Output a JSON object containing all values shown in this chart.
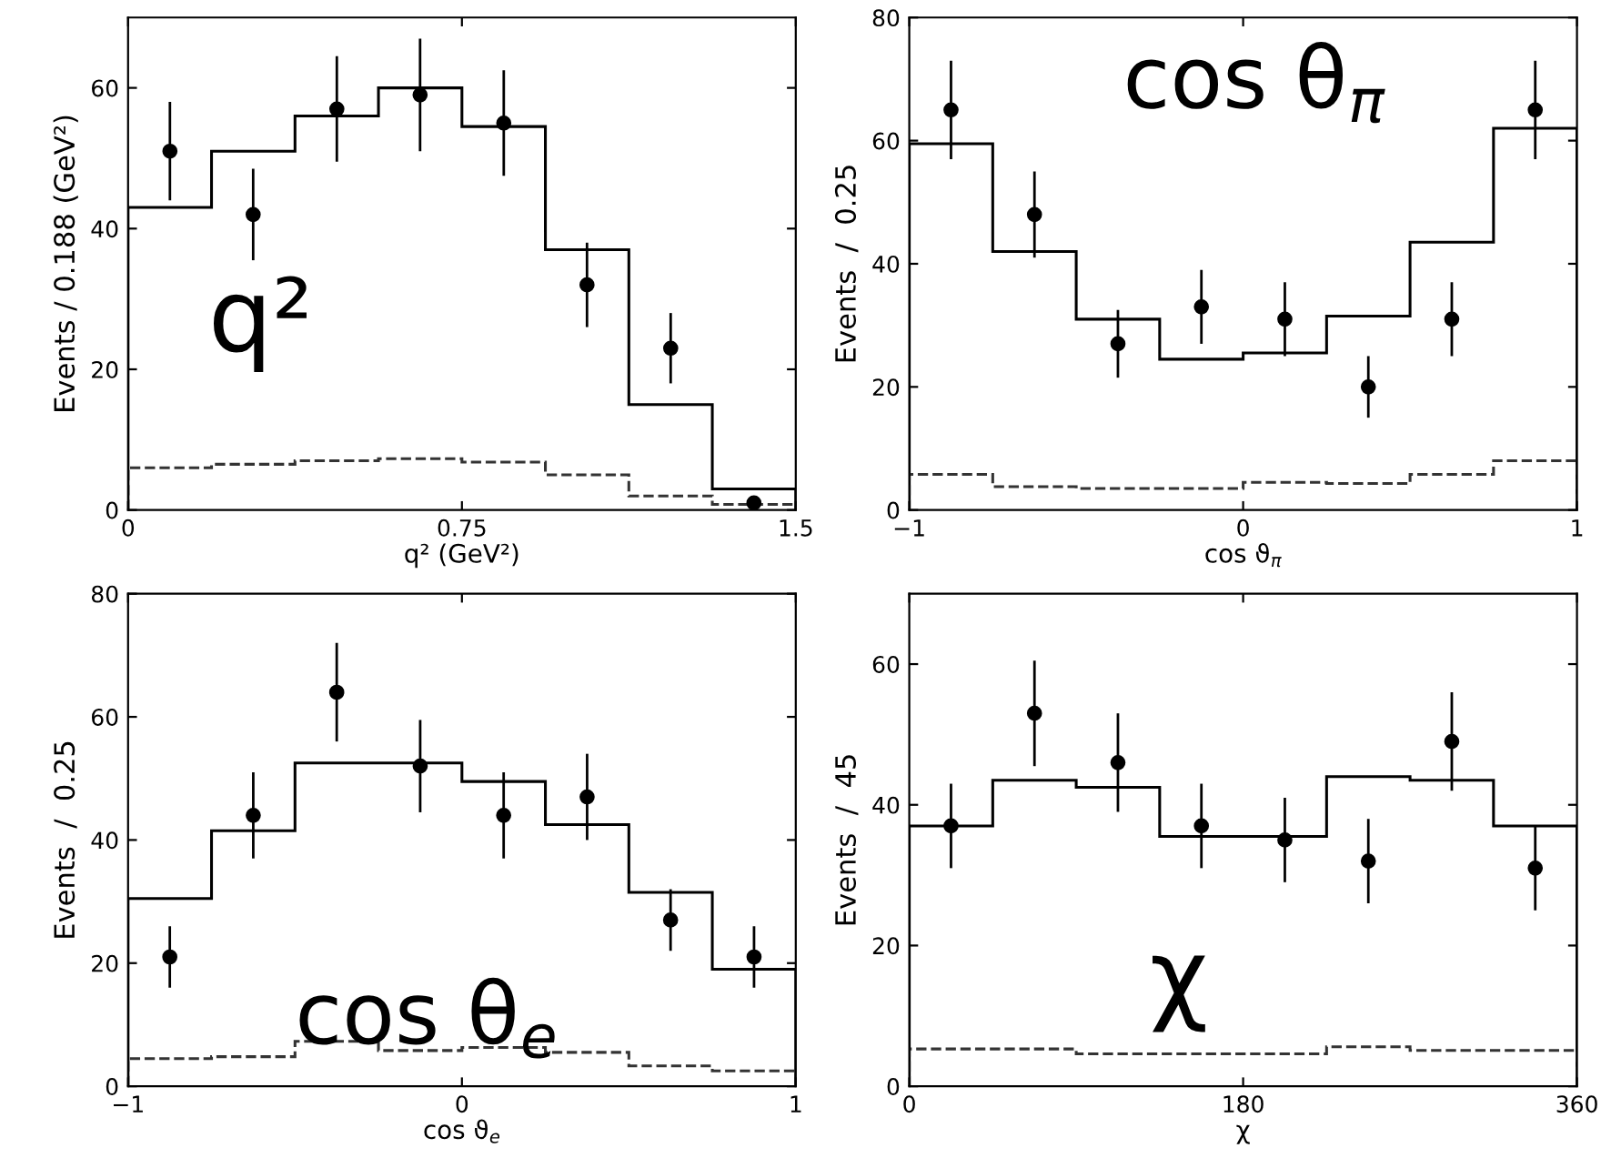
{
  "chart_data": [
    {
      "type": "histogram",
      "xlabel": "q² (GeV²)",
      "ylabel": "Events / 0.188 (GeV²)",
      "annotations": [
        "q²"
      ],
      "bins": [
        0,
        0.1875,
        0.375,
        0.5625,
        0.75,
        0.9375,
        1.125,
        1.3125,
        1.5
      ],
      "series": [
        {
          "color": "#000000",
          "line_style": "solid",
          "values": [
            43,
            51,
            56,
            60,
            54.5,
            37,
            15,
            3
          ]
        },
        {
          "color": "#333333",
          "line_style": "dashed",
          "values": [
            6,
            6.5,
            7,
            7.3,
            6.8,
            5,
            2,
            0.8
          ]
        },
        {
          "type": "scatter",
          "color": "#000000",
          "marker": "circle",
          "x": [
            0.094,
            0.281,
            0.469,
            0.656,
            0.844,
            1.031,
            1.219,
            1.406
          ],
          "values": [
            51,
            42,
            57,
            59,
            55,
            32,
            23,
            1
          ],
          "errors": [
            7,
            6.5,
            7.5,
            8,
            7.5,
            6,
            5,
            1
          ]
        }
      ],
      "xlim": [
        0,
        1.5
      ],
      "xticks": [
        0,
        0.75,
        1.5
      ],
      "ylim": [
        0,
        70
      ],
      "yticks": [
        0,
        20,
        40,
        60
      ],
      "grid": false,
      "legend": false
    },
    {
      "type": "histogram",
      "xlabel": "cos ϑ$_{π}$",
      "ylabel": "Events  /  0.25",
      "annotations": [
        "cos θ$_{π}$"
      ],
      "bins": [
        -1,
        -0.75,
        -0.5,
        -0.25,
        0,
        0.25,
        0.5,
        0.75,
        1
      ],
      "series": [
        {
          "color": "#000000",
          "line_style": "solid",
          "values": [
            59.5,
            42,
            31,
            24.5,
            25.5,
            31.5,
            43.5,
            62
          ]
        },
        {
          "color": "#333333",
          "line_style": "dashed",
          "values": [
            5.8,
            3.8,
            3.5,
            3.5,
            4.5,
            4.3,
            5.8,
            8
          ]
        },
        {
          "type": "scatter",
          "color": "#000000",
          "marker": "circle",
          "x": [
            -0.875,
            -0.625,
            -0.375,
            -0.125,
            0.125,
            0.375,
            0.625,
            0.875
          ],
          "values": [
            65,
            48,
            27,
            33,
            31,
            20,
            31,
            65
          ],
          "errors": [
            8,
            7,
            5.5,
            6,
            6,
            5,
            6,
            8
          ]
        }
      ],
      "xlim": [
        -1,
        1
      ],
      "xticks": [
        {
          "value": -1,
          "label": "−1"
        },
        0,
        1
      ],
      "ylim": [
        0,
        80
      ],
      "yticks": [
        0,
        20,
        40,
        60,
        80
      ],
      "grid": false,
      "legend": false
    },
    {
      "type": "histogram",
      "xlabel": "cos ϑ$_{e}$",
      "ylabel": "Events  /  0.25",
      "annotations": [
        "cos θ$_{e}$"
      ],
      "bins": [
        -1,
        -0.75,
        -0.5,
        -0.25,
        0,
        0.25,
        0.5,
        0.75,
        1
      ],
      "series": [
        {
          "color": "#000000",
          "line_style": "solid",
          "values": [
            30.5,
            41.5,
            52.5,
            52.5,
            49.5,
            42.5,
            31.5,
            19
          ]
        },
        {
          "color": "#333333",
          "line_style": "dashed",
          "values": [
            4.5,
            4.8,
            7.3,
            5.8,
            6.3,
            5.5,
            3.3,
            2.5
          ]
        },
        {
          "type": "scatter",
          "color": "#000000",
          "marker": "circle",
          "x": [
            -0.875,
            -0.625,
            -0.375,
            -0.125,
            0.125,
            0.375,
            0.625,
            0.875
          ],
          "values": [
            21,
            44,
            64,
            52,
            44,
            47,
            27,
            21
          ],
          "errors": [
            5,
            7,
            8,
            7.5,
            7,
            7,
            5,
            5
          ]
        }
      ],
      "xlim": [
        -1,
        1
      ],
      "xticks": [
        {
          "value": -1,
          "label": "−1"
        },
        0,
        1
      ],
      "ylim": [
        0,
        80
      ],
      "yticks": [
        0,
        20,
        40,
        60,
        80
      ],
      "grid": false,
      "legend": false
    },
    {
      "type": "histogram",
      "xlabel": "χ",
      "ylabel": "Events  /  45",
      "annotations": [
        "χ"
      ],
      "bins": [
        0,
        45,
        90,
        135,
        180,
        225,
        270,
        315,
        360
      ],
      "series": [
        {
          "color": "#000000",
          "line_style": "solid",
          "values": [
            37,
            43.5,
            42.5,
            35.5,
            35.5,
            44,
            43.5,
            37
          ]
        },
        {
          "color": "#333333",
          "line_style": "dashed",
          "values": [
            5.3,
            5.3,
            4.6,
            4.6,
            4.6,
            5.6,
            5.1,
            5.1
          ]
        },
        {
          "type": "scatter",
          "color": "#000000",
          "marker": "circle",
          "x": [
            22.5,
            67.5,
            112.5,
            157.5,
            202.5,
            247.5,
            292.5,
            337.5
          ],
          "values": [
            37,
            53,
            46,
            37,
            35,
            32,
            49,
            31
          ],
          "errors": [
            6,
            7.5,
            7,
            6,
            6,
            6,
            7,
            6
          ]
        }
      ],
      "xlim": [
        0,
        360
      ],
      "xticks": [
        0,
        180,
        360
      ],
      "ylim": [
        0,
        70
      ],
      "yticks": [
        0,
        20,
        40,
        60
      ],
      "grid": false,
      "legend": false
    }
  ]
}
